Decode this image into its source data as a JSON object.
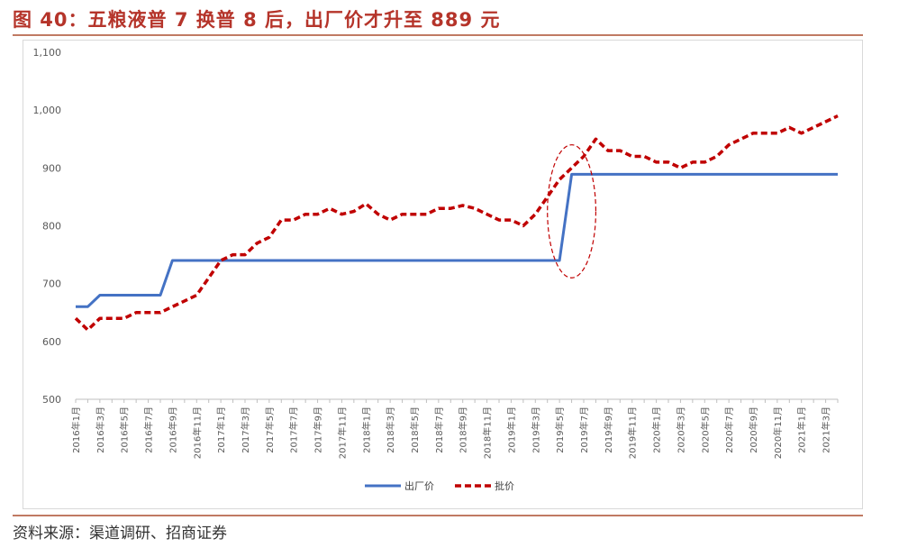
{
  "header": {
    "title": "图 40：五粮液普 7 换普 8 后，出厂价才升至 889 元"
  },
  "footer": {
    "source": "资料来源：渠道调研、招商证券"
  },
  "colors": {
    "title": "#b5342a",
    "factory_price": "#4472c4",
    "wholesale_price": "#c00000",
    "rule": "#c07a63"
  },
  "chart_data": {
    "type": "line",
    "title": "",
    "xlabel": "",
    "ylabel": "",
    "ylim": [
      500,
      1100
    ],
    "yticks": [
      "500",
      "600",
      "700",
      "800",
      "900",
      "1,000",
      "1,100"
    ],
    "grid": false,
    "legend_position": "bottom-center",
    "x_tick_labels": [
      "2016年1月",
      "2016年3月",
      "2016年5月",
      "2016年7月",
      "2016年9月",
      "2016年11月",
      "2017年1月",
      "2017年3月",
      "2017年5月",
      "2017年7月",
      "2017年9月",
      "2017年11月",
      "2018年1月",
      "2018年3月",
      "2018年5月",
      "2018年7月",
      "2018年9月",
      "2018年11月",
      "2019年1月",
      "2019年3月",
      "2019年5月",
      "2019年7月",
      "2019年9月",
      "2019年11月",
      "2020年1月",
      "2020年3月",
      "2020年5月",
      "2020年7月",
      "2020年9月",
      "2020年11月",
      "2021年1月",
      "2021年3月"
    ],
    "x_start": "2016-01",
    "x_end": "2021-04",
    "series": [
      {
        "name": "出厂价",
        "style": "solid",
        "values": [
          660,
          660,
          680,
          680,
          680,
          680,
          680,
          680,
          740,
          740,
          740,
          740,
          740,
          740,
          740,
          740,
          740,
          740,
          740,
          740,
          740,
          740,
          740,
          740,
          740,
          740,
          740,
          740,
          740,
          740,
          740,
          740,
          740,
          740,
          740,
          740,
          740,
          740,
          740,
          740,
          740,
          889,
          889,
          889,
          889,
          889,
          889,
          889,
          889,
          889,
          889,
          889,
          889,
          889,
          889,
          889,
          889,
          889,
          889,
          889,
          889,
          889,
          889,
          889
        ]
      },
      {
        "name": "批价",
        "style": "dashed",
        "values": [
          640,
          620,
          640,
          640,
          640,
          650,
          650,
          650,
          660,
          670,
          680,
          710,
          740,
          750,
          750,
          770,
          780,
          810,
          810,
          820,
          820,
          830,
          820,
          825,
          838,
          820,
          810,
          820,
          820,
          820,
          830,
          830,
          835,
          830,
          820,
          810,
          810,
          800,
          820,
          850,
          880,
          900,
          920,
          950,
          930,
          930,
          920,
          920,
          910,
          910,
          900,
          910,
          910,
          920,
          940,
          950,
          960,
          960,
          960,
          970,
          960,
          970,
          980,
          990
        ]
      }
    ],
    "annotation": {
      "type": "ellipse",
      "style": "dashed",
      "color": "#c00000",
      "x_from": "2019-04",
      "x_to": "2019-08",
      "y_from": 710,
      "y_to": 940
    }
  }
}
